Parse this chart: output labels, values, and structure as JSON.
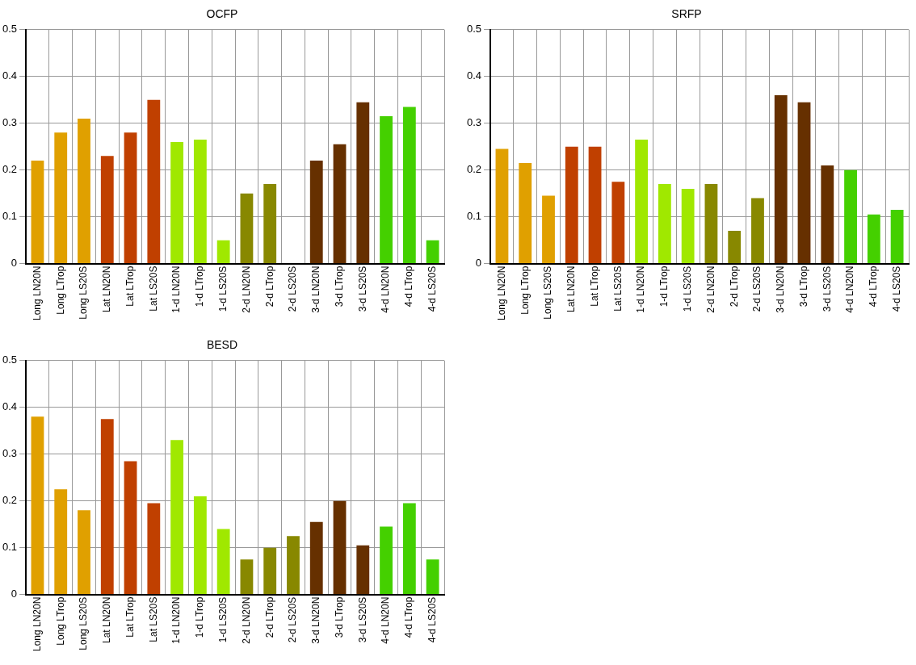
{
  "chart_data": [
    {
      "type": "bar",
      "title": "OCFP",
      "categories": [
        "Long LN20N",
        "Long LTrop",
        "Long LS20S",
        "Lat LN20N",
        "Lat LTrop",
        "Lat LS20S",
        "1-d LN20N",
        "1-d LTrop",
        "1-d LS20S",
        "2-d LN20N",
        "2-d LTrop",
        "2-d LS20S",
        "3-d LN20N",
        "3-d LTrop",
        "3-d LS20S",
        "4-d LN20N",
        "4-d LTrop",
        "4-d LS20S"
      ],
      "values": [
        0.22,
        0.28,
        0.31,
        0.23,
        0.28,
        0.35,
        0.26,
        0.265,
        0.05,
        0.15,
        0.17,
        0,
        0.22,
        0.255,
        0.345,
        0.315,
        0.335,
        0.05
      ],
      "colors": [
        "#e0a000",
        "#e0a000",
        "#e0a000",
        "#c04000",
        "#c04000",
        "#c04000",
        "#a0e800",
        "#a0e800",
        "#a0e800",
        "#888800",
        "#888800",
        "#888800",
        "#663000",
        "#663000",
        "#663000",
        "#44d000",
        "#44d000",
        "#44d000"
      ],
      "ylim": [
        0,
        0.5
      ],
      "yticks": [
        0,
        0.1,
        0.2,
        0.3,
        0.4,
        0.5
      ],
      "grid": true
    },
    {
      "type": "bar",
      "title": "SRFP",
      "categories": [
        "Long LN20N",
        "Long LTrop",
        "Long LS20S",
        "Lat LN20N",
        "Lat LTrop",
        "Lat LS20S",
        "1-d LN20N",
        "1-d LTrop",
        "1-d LS20S",
        "2-d LN20N",
        "2-d LTrop",
        "2-d LS20S",
        "3-d LN20N",
        "3-d LTrop",
        "3-d LS20S",
        "4-d LN20N",
        "4-d LTrop",
        "4-d LS20S"
      ],
      "values": [
        0.245,
        0.215,
        0.145,
        0.25,
        0.25,
        0.175,
        0.265,
        0.17,
        0.16,
        0.17,
        0.07,
        0.14,
        0.36,
        0.345,
        0.21,
        0.2,
        0.105,
        0.115
      ],
      "colors": [
        "#e0a000",
        "#e0a000",
        "#e0a000",
        "#c04000",
        "#c04000",
        "#c04000",
        "#a0e800",
        "#a0e800",
        "#a0e800",
        "#888800",
        "#888800",
        "#888800",
        "#663000",
        "#663000",
        "#663000",
        "#44d000",
        "#44d000",
        "#44d000"
      ],
      "ylim": [
        0,
        0.5
      ],
      "yticks": [
        0,
        0.1,
        0.2,
        0.3,
        0.4,
        0.5
      ],
      "grid": true
    },
    {
      "type": "bar",
      "title": "BESD",
      "categories": [
        "Long LN20N",
        "Long LTrop",
        "Long LS20S",
        "Lat LN20N",
        "Lat LTrop",
        "Lat LS20S",
        "1-d LN20N",
        "1-d LTrop",
        "1-d LS20S",
        "2-d LN20N",
        "2-d LTrop",
        "2-d LS20S",
        "3-d LN20N",
        "3-d LTrop",
        "3-d LS20S",
        "4-d LN20N",
        "4-d LTrop",
        "4-d LS20S"
      ],
      "values": [
        0.38,
        0.225,
        0.18,
        0.375,
        0.285,
        0.195,
        0.33,
        0.21,
        0.14,
        0.075,
        0.1,
        0.125,
        0.155,
        0.2,
        0.105,
        0.145,
        0.195,
        0.075
      ],
      "colors": [
        "#e0a000",
        "#e0a000",
        "#e0a000",
        "#c04000",
        "#c04000",
        "#c04000",
        "#a0e800",
        "#a0e800",
        "#a0e800",
        "#888800",
        "#888800",
        "#888800",
        "#663000",
        "#663000",
        "#663000",
        "#44d000",
        "#44d000",
        "#44d000"
      ],
      "ylim": [
        0,
        0.5
      ],
      "yticks": [
        0,
        0.1,
        0.2,
        0.3,
        0.4,
        0.5
      ],
      "grid": true
    }
  ]
}
